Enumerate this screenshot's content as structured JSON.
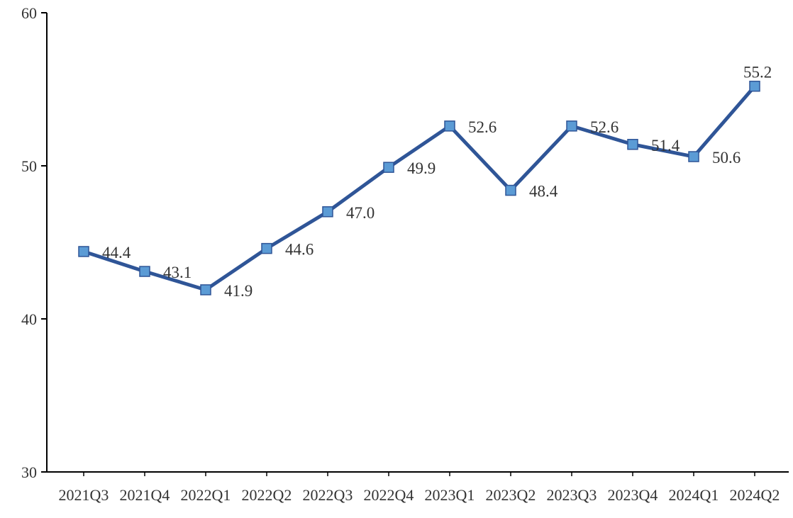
{
  "chart_data": {
    "type": "line",
    "title": "",
    "xlabel": "",
    "ylabel": "",
    "categories": [
      "2021Q3",
      "2021Q4",
      "2022Q1",
      "2022Q2",
      "2022Q3",
      "2022Q4",
      "2023Q1",
      "2023Q2",
      "2023Q3",
      "2023Q4",
      "2024Q1",
      "2024Q2"
    ],
    "series": [
      {
        "values": [
          44.4,
          43.1,
          41.9,
          44.6,
          47.0,
          49.9,
          52.6,
          48.4,
          52.6,
          51.4,
          50.6,
          55.2
        ]
      }
    ],
    "value_labels": [
      "44.4",
      "43.1",
      "41.9",
      "44.6",
      "47.0",
      "49.9",
      "52.6",
      "48.4",
      "52.6",
      "51.4",
      "50.6",
      "55.2"
    ],
    "ylim": [
      30,
      60
    ],
    "yticks": [
      30,
      40,
      50,
      60
    ],
    "ytick_labels": [
      "30",
      "40",
      "50",
      "60"
    ],
    "grid": false,
    "legend": "none",
    "colors": {
      "line": "#2f5597",
      "marker_fill": "#5b9bd5",
      "axis": "#000000",
      "text": "#333333"
    }
  }
}
